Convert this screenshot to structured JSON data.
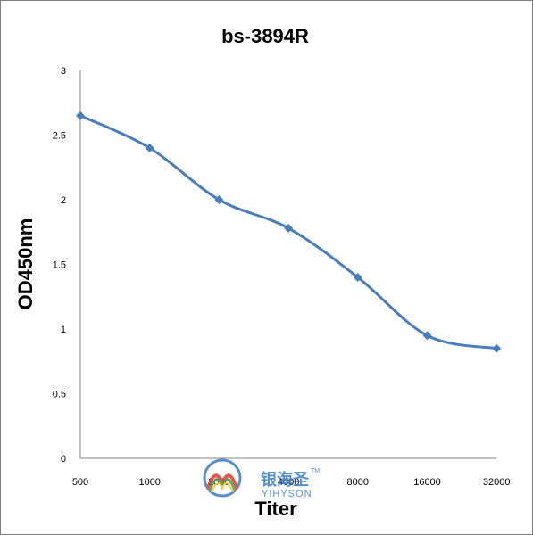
{
  "chart_data": {
    "type": "line",
    "title": "bs-3894R",
    "xlabel": "Titer",
    "ylabel": "OD450nm",
    "categories": [
      "500",
      "1000",
      "2000",
      "4000",
      "8000",
      "16000",
      "32000"
    ],
    "series": [
      {
        "values": [
          2.65,
          2.4,
          2.0,
          1.78,
          1.4,
          0.95,
          0.85
        ],
        "color": "#4a7ebb",
        "marker": "diamond"
      }
    ],
    "y_ticks": [
      "0",
      "0.5",
      "1",
      "1.5",
      "2",
      "2.5",
      "3"
    ],
    "ylim": [
      0,
      3
    ],
    "grid": false,
    "legend": "none",
    "smooth": true
  },
  "watermark": {
    "brand_cn": "银海圣",
    "brand_en": "YIHYSON",
    "trademark": "TM",
    "icon": "yihyson-logo-icon",
    "colors": [
      "#3a7cc4",
      "#e53935",
      "#43a047",
      "#fbc02d"
    ]
  }
}
